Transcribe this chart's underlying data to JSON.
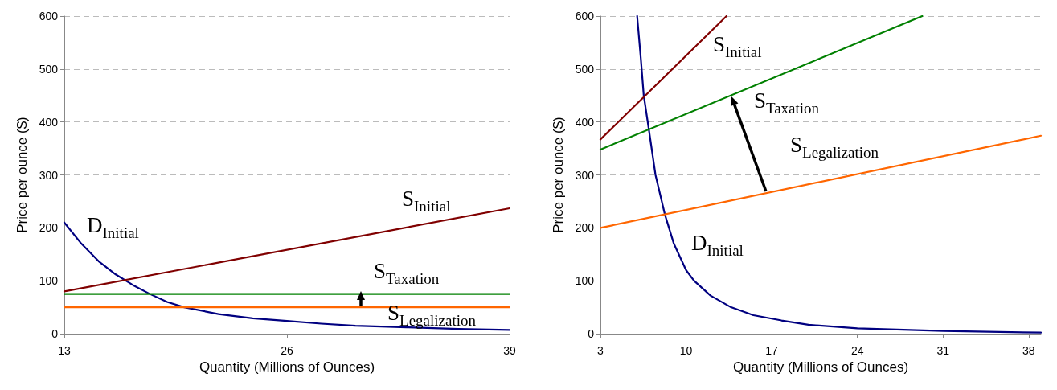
{
  "chart_data": [
    {
      "type": "line",
      "xlabel": "Quantity (Millions of Ounces)",
      "ylabel": "Price per ounce ($)",
      "xlim": [
        13,
        39
      ],
      "xticks": [
        13,
        26,
        39
      ],
      "ylim": [
        0,
        600
      ],
      "yticks": [
        0,
        100,
        200,
        300,
        400,
        500,
        600
      ],
      "grid": "y",
      "marker": "none",
      "series": [
        {
          "color": "#000080",
          "x": [
            13,
            14,
            15,
            16,
            17,
            18,
            19,
            20,
            22,
            24,
            26,
            28,
            30,
            33,
            36,
            39
          ],
          "values": [
            210,
            170,
            137,
            112,
            92,
            75,
            60,
            50,
            37,
            29,
            24,
            19,
            15,
            12,
            9,
            7
          ]
        },
        {
          "color": "#800000",
          "x": [
            13,
            39
          ],
          "values": [
            80,
            237
          ]
        },
        {
          "color": "#008000",
          "x": [
            13,
            39
          ],
          "values": [
            75,
            75
          ]
        },
        {
          "color": "#ff6600",
          "x": [
            13,
            39
          ],
          "values": [
            50,
            50
          ]
        }
      ],
      "annotations": [
        "D$_{Initial}$",
        "S$_{Initial}$",
        "S$_{Taxation}$",
        "S$_{Legalization}$"
      ]
    },
    {
      "type": "line",
      "xlabel": "Quantity (Millions of Ounces)",
      "ylabel": "Price per ounce ($)",
      "xlim": [
        3,
        39
      ],
      "xticks": [
        3,
        10,
        17,
        24,
        31,
        38
      ],
      "ylim": [
        0,
        600
      ],
      "yticks": [
        0,
        100,
        200,
        300,
        400,
        500,
        600
      ],
      "grid": "y",
      "marker": "none",
      "series": [
        {
          "color": "#000080",
          "x": [
            6,
            6.3,
            6.54,
            6.95,
            7.5,
            8.27,
            9,
            10,
            10.65,
            12,
            13.67,
            15.5,
            17.8,
            20,
            24,
            31,
            39
          ],
          "values": [
            600,
            520,
            450,
            387,
            300,
            225,
            170,
            120,
            100,
            72,
            50,
            35,
            25,
            17,
            10,
            5,
            2
          ]
        },
        {
          "color": "#800000",
          "x": [
            3,
            13.3
          ],
          "values": [
            367,
            600
          ]
        },
        {
          "color": "#008000",
          "x": [
            3,
            29.3
          ],
          "values": [
            348,
            600
          ]
        },
        {
          "color": "#ff6600",
          "x": [
            3,
            39
          ],
          "values": [
            200,
            374
          ]
        }
      ],
      "annotations": [
        "S$_{Initial}$",
        {
          "text": "S$_{Taxation}$",
          "x": 13.7,
          "y": 450
        },
        "S$_{Legalization}$",
        "D$_{Initial}$"
      ]
    }
  ]
}
